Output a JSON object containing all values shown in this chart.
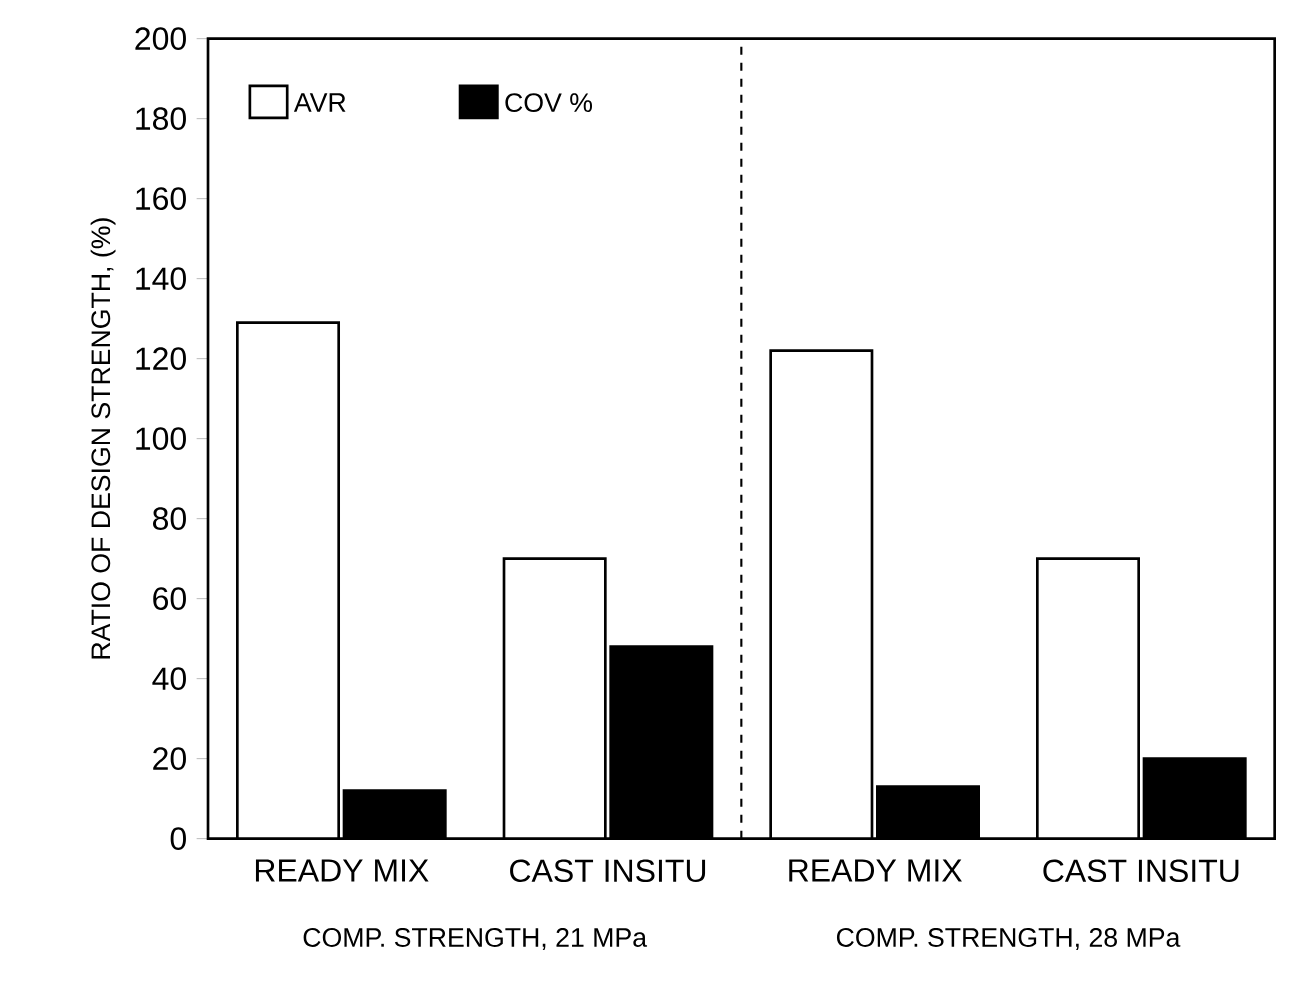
{
  "chart_data": {
    "type": "bar",
    "ylabel": "RATIO OF DESIGN STRENGTH, (%)",
    "categories": [
      "READY MIX",
      "CAST INSITU",
      "READY MIX",
      "CAST INSITU"
    ],
    "series": [
      {
        "name": "AVR",
        "color": "#ffffff",
        "values": [
          129,
          70,
          122,
          70
        ]
      },
      {
        "name": "COV %",
        "color": "#000000",
        "values": [
          12,
          48,
          13,
          20
        ]
      }
    ],
    "ylim": [
      0,
      200
    ],
    "yticks": [
      0,
      20,
      40,
      60,
      80,
      100,
      120,
      140,
      160,
      180,
      200
    ],
    "annotations": [
      "COMP. STRENGTH, 21 MPa",
      "COMP. STRENGTH, 28 MPa"
    ],
    "legend": "top left",
    "grid": false
  }
}
